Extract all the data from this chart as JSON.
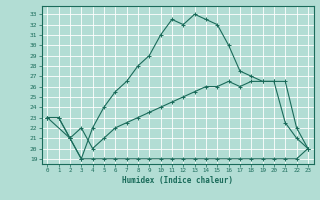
{
  "xlabel": "Humidex (Indice chaleur)",
  "bg_color": "#b2ddd4",
  "grid_color": "#ffffff",
  "line_color": "#1a6b5a",
  "x_ticks": [
    0,
    1,
    2,
    3,
    4,
    5,
    6,
    7,
    8,
    9,
    10,
    11,
    12,
    13,
    14,
    15,
    16,
    17,
    18,
    19,
    20,
    21,
    22,
    23
  ],
  "y_ticks": [
    19,
    20,
    21,
    22,
    23,
    24,
    25,
    26,
    27,
    28,
    29,
    30,
    31,
    32,
    33
  ],
  "ylim": [
    18.5,
    33.8
  ],
  "xlim": [
    -0.5,
    23.5
  ],
  "line1_x": [
    0,
    1,
    2,
    3,
    4,
    5,
    6,
    7,
    8,
    9,
    10,
    11,
    12,
    13,
    14,
    15,
    16,
    17,
    18,
    19,
    20,
    21,
    22,
    23
  ],
  "line1_y": [
    23,
    23,
    21,
    19,
    19,
    19,
    19,
    19,
    19,
    19,
    19,
    19,
    19,
    19,
    19,
    19,
    19,
    19,
    19,
    19,
    19,
    19,
    19,
    20
  ],
  "line2_x": [
    0,
    2,
    3,
    4,
    5,
    6,
    7,
    8,
    9,
    10,
    11,
    12,
    13,
    14,
    15,
    16,
    17,
    18,
    19,
    20,
    21,
    22,
    23
  ],
  "line2_y": [
    23,
    21,
    22,
    20,
    21,
    22,
    22.5,
    23,
    23.5,
    24,
    24.5,
    25,
    25.5,
    26,
    26,
    26.5,
    26,
    26.5,
    26.5,
    26.5,
    26.5,
    22,
    20
  ],
  "line3_x": [
    0,
    1,
    2,
    3,
    4,
    5,
    6,
    7,
    8,
    9,
    10,
    11,
    12,
    13,
    14,
    15,
    16,
    17,
    18,
    19,
    20,
    21,
    22,
    23
  ],
  "line3_y": [
    23,
    23,
    21,
    19,
    22,
    24,
    25.5,
    26.5,
    28,
    29,
    31,
    32.5,
    32,
    33,
    32.5,
    32,
    30,
    27.5,
    27,
    26.5,
    26.5,
    22.5,
    21,
    20
  ]
}
